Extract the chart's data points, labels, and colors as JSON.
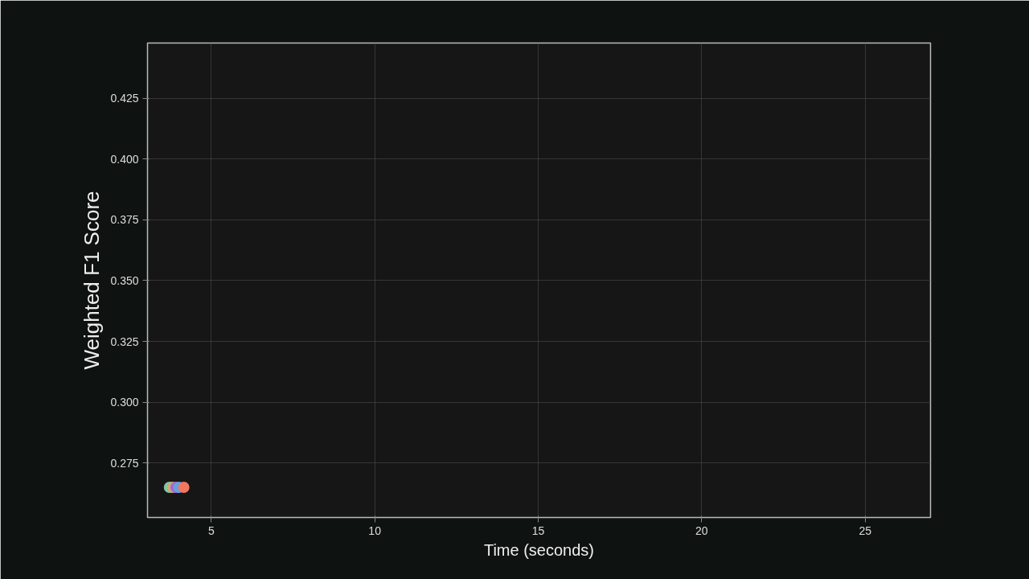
{
  "chart_data": {
    "type": "scatter",
    "xlabel": "Time (seconds)",
    "ylabel": "Weighted F1 Score",
    "x": [
      3.72,
      3.82,
      3.92,
      4.01,
      4.16
    ],
    "values": [
      0.265,
      0.265,
      0.265,
      0.265,
      0.265
    ],
    "colors": [
      "#7fc8a0",
      "#d4a77a",
      "#a06ad0",
      "#6a9ee0",
      "#f07860"
    ],
    "xlim": [
      3.05,
      27.0
    ],
    "ylim": [
      0.2526,
      0.4477
    ],
    "xticks": [
      5,
      10,
      15,
      20,
      25
    ],
    "yticks": [
      {
        "value": 0.275,
        "label": "0.275"
      },
      {
        "value": 0.3,
        "label": "0.300"
      },
      {
        "value": 0.325,
        "label": "0.325"
      },
      {
        "value": 0.35,
        "label": "0.350"
      },
      {
        "value": 0.375,
        "label": "0.375"
      },
      {
        "value": 0.4,
        "label": "0.400"
      },
      {
        "value": 0.425,
        "label": "0.425"
      }
    ],
    "grid": true,
    "marker": "circle"
  }
}
